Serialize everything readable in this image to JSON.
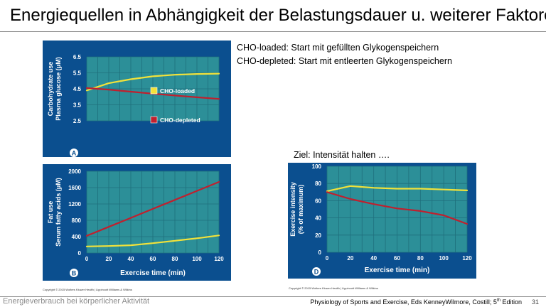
{
  "slide": {
    "title": "Energiequellen in Abhängigkeit der Belastungsdauer u. weiterer Faktoren",
    "notes": [
      "CHO-loaded:  Start mit gefüllten Glykogenspeichern",
      "CHO-depleted:  Start mit entleerten Glykogenspeichern"
    ],
    "goal": "Ziel:  Intensität halten ….",
    "copyright": "Copyright © 2015 Wolters Kluwer Health | Lippincott Williams & Wilkins",
    "footer_left": "Energieverbrauch bei körperlicher Aktivität",
    "footer_right_pre": "Physiology of Sports and Exercise, Eds KenneyWilmore, Costill; 5",
    "footer_right_sup": "th",
    "footer_right_post": " Edition",
    "page_number": "31"
  },
  "colors": {
    "panel_bg": "#0b4f8f",
    "plot_bg": "#2c8f98",
    "grid": "#1f6f7c",
    "series_yellow": "#f2e23a",
    "series_red": "#c0202e"
  },
  "chart_data": [
    {
      "type": "line",
      "panel_label": "A",
      "ylabel": [
        "Carbohydrate use",
        "Plasma glucose (μM)"
      ],
      "xlabel": "",
      "xlim": [
        0,
        120
      ],
      "ylim": [
        2.5,
        6.5
      ],
      "yticks": [
        "6.5",
        "5.5",
        "4.5",
        "3.5",
        "2.5"
      ],
      "ytick_values": [
        6.5,
        5.5,
        4.5,
        3.5,
        2.5
      ],
      "series": [
        {
          "name": "CHO-loaded",
          "color_key": "series_yellow",
          "x": [
            0,
            20,
            40,
            60,
            80,
            100,
            120
          ],
          "y": [
            4.4,
            4.85,
            5.1,
            5.28,
            5.38,
            5.43,
            5.45
          ]
        },
        {
          "name": "CHO-depleted",
          "color_key": "series_red",
          "x": [
            0,
            20,
            40,
            60,
            80,
            100,
            120
          ],
          "y": [
            4.55,
            4.45,
            4.32,
            4.2,
            4.08,
            3.97,
            3.87
          ]
        }
      ],
      "legend": [
        {
          "label": "CHO-loaded",
          "color_key": "series_yellow"
        },
        {
          "label": "CHO-depleted",
          "color_key": "series_red"
        }
      ]
    },
    {
      "type": "line",
      "panel_label": "B",
      "ylabel": [
        "Fat use",
        "Serum fatty acids (μM)"
      ],
      "xlabel": "Exercise time (min)",
      "xlim": [
        0,
        120
      ],
      "ylim": [
        0,
        2000
      ],
      "xticks": [
        "0",
        "20",
        "40",
        "60",
        "80",
        "100",
        "120"
      ],
      "xtick_values": [
        0,
        20,
        40,
        60,
        80,
        100,
        120
      ],
      "yticks": [
        "2000",
        "1600",
        "1200",
        "800",
        "400",
        "0"
      ],
      "ytick_values": [
        2000,
        1600,
        1200,
        800,
        400,
        0
      ],
      "series": [
        {
          "name": "",
          "color_key": "series_red",
          "x": [
            0,
            20,
            40,
            60,
            80,
            100,
            120
          ],
          "y": [
            420,
            640,
            860,
            1080,
            1300,
            1520,
            1740
          ]
        },
        {
          "name": "",
          "color_key": "series_yellow",
          "x": [
            0,
            20,
            40,
            60,
            80,
            100,
            120
          ],
          "y": [
            160,
            170,
            190,
            240,
            300,
            360,
            430
          ]
        }
      ]
    },
    {
      "type": "line",
      "panel_label": "D",
      "ylabel": [
        "Exercise intensity",
        "(% of maximum)"
      ],
      "xlabel": "Exercise time (min)",
      "xlim": [
        0,
        120
      ],
      "ylim": [
        0,
        100
      ],
      "xticks": [
        "0",
        "20",
        "40",
        "60",
        "80",
        "100",
        "120"
      ],
      "xtick_values": [
        0,
        20,
        40,
        60,
        80,
        100,
        120
      ],
      "yticks": [
        "100",
        "80",
        "60",
        "40",
        "20",
        "0"
      ],
      "ytick_values": [
        100,
        80,
        60,
        40,
        20,
        0
      ],
      "series": [
        {
          "name": "",
          "color_key": "series_yellow",
          "x": [
            0,
            20,
            40,
            60,
            80,
            100,
            120
          ],
          "y": [
            71,
            77,
            75,
            74,
            74,
            73,
            72
          ]
        },
        {
          "name": "",
          "color_key": "series_red",
          "x": [
            0,
            20,
            40,
            60,
            80,
            100,
            120
          ],
          "y": [
            70,
            62,
            56,
            51,
            48,
            43,
            33
          ]
        }
      ]
    }
  ]
}
